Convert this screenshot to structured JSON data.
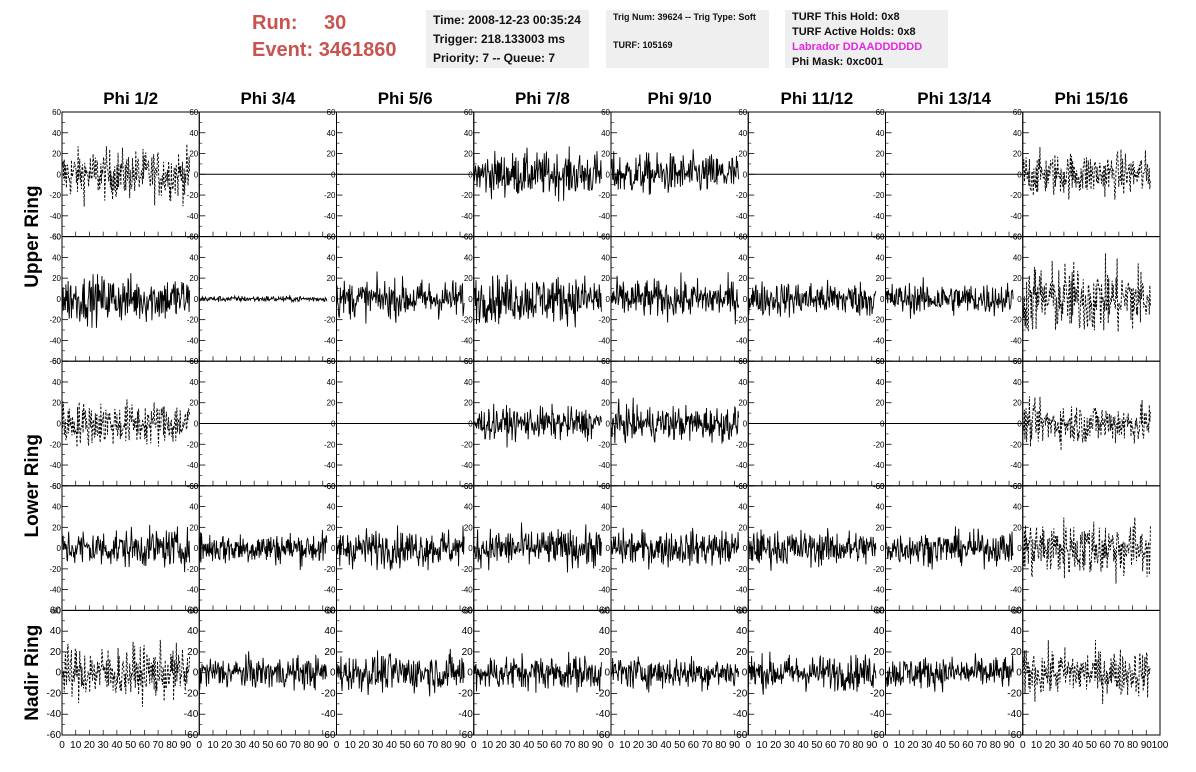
{
  "header": {
    "run_label": "Run:",
    "run_value": "30",
    "event_label": "Event:",
    "event_value": "3461860",
    "time": "Time: 2008-12-23 00:35:24",
    "trigger": "Trigger: 218.133003 ms",
    "priority": "Priority: 7 -- Queue: 7",
    "trig_num": "Trig Num: 39624 -- Trig Type: Soft",
    "turf": "TURF: 105169",
    "turf_this_hold": "TURF This Hold: 0x8",
    "turf_active_holds": "TURF Active Holds: 0x8",
    "labrador": "Labrador DDAADDDDDD",
    "phi_mask": "Phi Mask: 0xc001"
  },
  "colors": {
    "run_text": "#c9534f",
    "labrador_text": "#e22ae2",
    "info_bg": "#efefef"
  },
  "chart_data": {
    "type": "line",
    "columns": [
      "Phi 1/2",
      "Phi 3/4",
      "Phi 5/6",
      "Phi 7/8",
      "Phi 9/10",
      "Phi 11/12",
      "Phi 13/14",
      "Phi 15/16"
    ],
    "ring_labels": [
      {
        "label": "Upper Ring",
        "rows": [
          0,
          1
        ]
      },
      {
        "label": "Lower Ring",
        "rows": [
          2,
          3
        ]
      },
      {
        "label": "Nadir Ring",
        "rows": [
          4
        ]
      }
    ],
    "xlim": [
      0,
      100
    ],
    "ylim": [
      -60,
      60
    ],
    "x_ticks": [
      0,
      10,
      20,
      30,
      40,
      50,
      60,
      70,
      80,
      90,
      100
    ],
    "x_tick_labels": [
      "0",
      "10",
      "20",
      "30",
      "40",
      "50",
      "60",
      "70",
      "80",
      "90",
      "100"
    ],
    "y_ticks": [
      -60,
      -40,
      -20,
      0,
      20,
      40,
      60
    ],
    "y_tick_labels": [
      "-60",
      "-40",
      "-20",
      "0",
      "20",
      "40",
      "60"
    ],
    "waveform_x_range": [
      0,
      93
    ],
    "panels": [
      [
        {
          "style": "dashed",
          "amp": 17
        },
        {
          "style": "flat",
          "amp": 0
        },
        {
          "style": "flat",
          "amp": 0
        },
        {
          "style": "solid",
          "amp": 15
        },
        {
          "style": "solid",
          "amp": 14
        },
        {
          "style": "flat",
          "amp": 0
        },
        {
          "style": "flat",
          "amp": 0
        },
        {
          "style": "dashed",
          "amp": 15
        }
      ],
      [
        {
          "style": "solid",
          "amp": 16
        },
        {
          "style": "solid",
          "amp": 2
        },
        {
          "style": "solid",
          "amp": 13
        },
        {
          "style": "solid",
          "amp": 16
        },
        {
          "style": "solid",
          "amp": 13
        },
        {
          "style": "solid",
          "amp": 12
        },
        {
          "style": "solid",
          "amp": 11
        },
        {
          "style": "dashed",
          "amp": 24
        }
      ],
      [
        {
          "style": "dashed",
          "amp": 15
        },
        {
          "style": "flat",
          "amp": 0
        },
        {
          "style": "flat",
          "amp": 0
        },
        {
          "style": "solid",
          "amp": 11
        },
        {
          "style": "solid",
          "amp": 12
        },
        {
          "style": "flat",
          "amp": 0
        },
        {
          "style": "flat",
          "amp": 0
        },
        {
          "style": "dashed",
          "amp": 14
        }
      ],
      [
        {
          "style": "solid",
          "amp": 13
        },
        {
          "style": "solid",
          "amp": 11
        },
        {
          "style": "solid",
          "amp": 13
        },
        {
          "style": "solid",
          "amp": 13
        },
        {
          "style": "solid",
          "amp": 12
        },
        {
          "style": "solid",
          "amp": 12
        },
        {
          "style": "solid",
          "amp": 11
        },
        {
          "style": "dashed",
          "amp": 20
        }
      ],
      [
        {
          "style": "dashed",
          "amp": 18
        },
        {
          "style": "solid",
          "amp": 11
        },
        {
          "style": "solid",
          "amp": 13
        },
        {
          "style": "solid",
          "amp": 12
        },
        {
          "style": "solid",
          "amp": 11
        },
        {
          "style": "solid",
          "amp": 12
        },
        {
          "style": "solid",
          "amp": 11
        },
        {
          "style": "dashed",
          "amp": 16
        }
      ]
    ]
  }
}
